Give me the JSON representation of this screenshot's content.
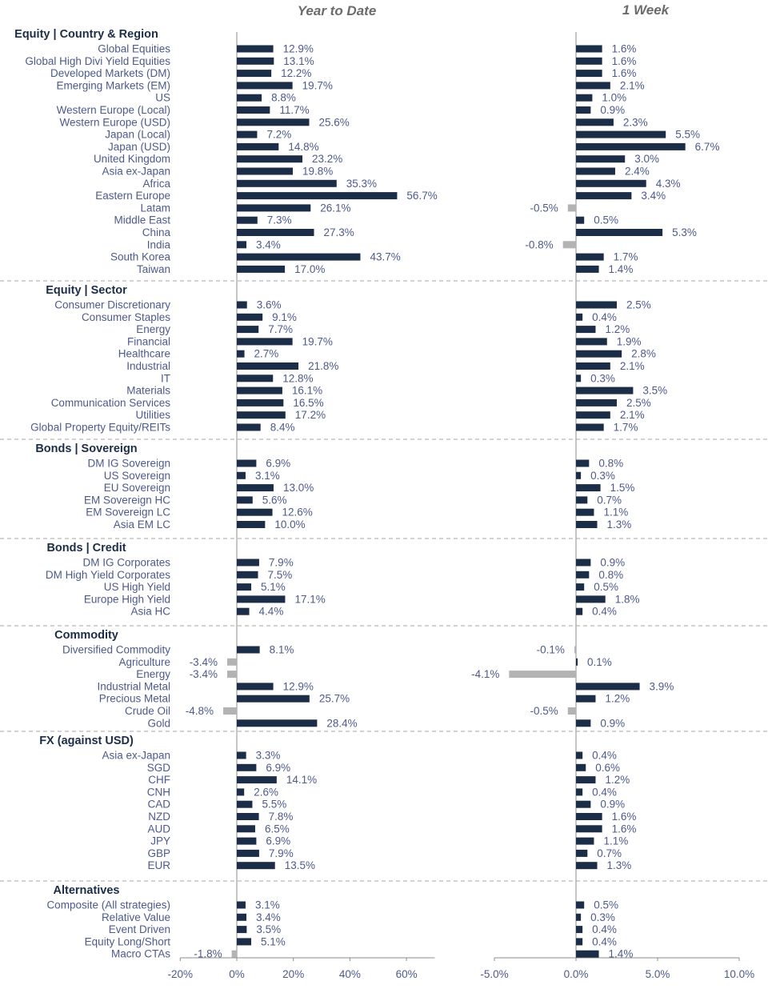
{
  "chart_data": {
    "type": "bar",
    "orientation": "horizontal",
    "colors": {
      "positive": "#1c2d47",
      "negative": "#b3b3b3",
      "text": "#4d5a8a",
      "header": "#1c2d47"
    },
    "panels": [
      {
        "title": "Year to Date",
        "xlim": [
          -20,
          70
        ],
        "ticks": [
          -20,
          0,
          20,
          40,
          60
        ],
        "tick_labels": [
          "-20%",
          "0%",
          "20%",
          "40%",
          "60%"
        ]
      },
      {
        "title": "1 Week",
        "xlim": [
          -5,
          10
        ],
        "ticks": [
          -5,
          0,
          5,
          10
        ],
        "tick_labels": [
          "-5.0%",
          "0.0%",
          "5.0%",
          "10.0%"
        ]
      }
    ],
    "groups": [
      {
        "name": "Equity | Country & Region",
        "items": [
          {
            "label": "Global Equities",
            "ytd": 12.9,
            "wk": 1.6
          },
          {
            "label": "Global High Divi Yield Equities",
            "ytd": 13.1,
            "wk": 1.6
          },
          {
            "label": "Developed Markets (DM)",
            "ytd": 12.2,
            "wk": 1.6
          },
          {
            "label": "Emerging Markets (EM)",
            "ytd": 19.7,
            "wk": 2.1
          },
          {
            "label": "US",
            "ytd": 8.8,
            "wk": 1.0
          },
          {
            "label": "Western Europe (Local)",
            "ytd": 11.7,
            "wk": 0.9
          },
          {
            "label": "Western Europe (USD)",
            "ytd": 25.6,
            "wk": 2.3
          },
          {
            "label": "Japan (Local)",
            "ytd": 7.2,
            "wk": 5.5
          },
          {
            "label": "Japan (USD)",
            "ytd": 14.8,
            "wk": 6.7
          },
          {
            "label": "United Kingdom",
            "ytd": 23.2,
            "wk": 3.0
          },
          {
            "label": "Asia ex-Japan",
            "ytd": 19.8,
            "wk": 2.4
          },
          {
            "label": "Africa",
            "ytd": 35.3,
            "wk": 4.3
          },
          {
            "label": "Eastern Europe",
            "ytd": 56.7,
            "wk": 3.4
          },
          {
            "label": "Latam",
            "ytd": 26.1,
            "wk": -0.5
          },
          {
            "label": "Middle East",
            "ytd": 7.3,
            "wk": 0.5
          },
          {
            "label": "China",
            "ytd": 27.3,
            "wk": 5.3
          },
          {
            "label": "India",
            "ytd": 3.4,
            "wk": -0.8
          },
          {
            "label": "South Korea",
            "ytd": 43.7,
            "wk": 1.7
          },
          {
            "label": "Taiwan",
            "ytd": 17.0,
            "wk": 1.4
          }
        ]
      },
      {
        "name": "Equity | Sector",
        "items": [
          {
            "label": "Consumer Discretionary",
            "ytd": 3.6,
            "wk": 2.5
          },
          {
            "label": "Consumer Staples",
            "ytd": 9.1,
            "wk": 0.4
          },
          {
            "label": "Energy",
            "ytd": 7.7,
            "wk": 1.2
          },
          {
            "label": "Financial",
            "ytd": 19.7,
            "wk": 1.9
          },
          {
            "label": "Healthcare",
            "ytd": 2.7,
            "wk": 2.8
          },
          {
            "label": "Industrial",
            "ytd": 21.8,
            "wk": 2.1
          },
          {
            "label": "IT",
            "ytd": 12.8,
            "wk": 0.3
          },
          {
            "label": "Materials",
            "ytd": 16.1,
            "wk": 3.5
          },
          {
            "label": "Communication Services",
            "ytd": 16.5,
            "wk": 2.5
          },
          {
            "label": "Utilities",
            "ytd": 17.2,
            "wk": 2.1
          },
          {
            "label": "Global Property Equity/REITs",
            "ytd": 8.4,
            "wk": 1.7
          }
        ]
      },
      {
        "name": "Bonds | Sovereign",
        "items": [
          {
            "label": "DM IG Sovereign",
            "ytd": 6.9,
            "wk": 0.8
          },
          {
            "label": "US Sovereign",
            "ytd": 3.1,
            "wk": 0.3
          },
          {
            "label": "EU Sovereign",
            "ytd": 13.0,
            "wk": 1.5
          },
          {
            "label": "EM Sovereign HC",
            "ytd": 5.6,
            "wk": 0.7
          },
          {
            "label": "EM Sovereign LC",
            "ytd": 12.6,
            "wk": 1.1
          },
          {
            "label": "Asia EM LC",
            "ytd": 10.0,
            "wk": 1.3
          }
        ]
      },
      {
        "name": "Bonds | Credit",
        "items": [
          {
            "label": "DM IG Corporates",
            "ytd": 7.9,
            "wk": 0.9
          },
          {
            "label": "DM High Yield Corporates",
            "ytd": 7.5,
            "wk": 0.8
          },
          {
            "label": "US High Yield",
            "ytd": 5.1,
            "wk": 0.5
          },
          {
            "label": "Europe High Yield",
            "ytd": 17.1,
            "wk": 1.8
          },
          {
            "label": "Asia HC",
            "ytd": 4.4,
            "wk": 0.4
          }
        ]
      },
      {
        "name": "Commodity",
        "items": [
          {
            "label": "Diversified Commodity",
            "ytd": 8.1,
            "wk": -0.1
          },
          {
            "label": "Agriculture",
            "ytd": -3.4,
            "wk": 0.1
          },
          {
            "label": "Energy",
            "ytd": -3.4,
            "wk": -4.1
          },
          {
            "label": "Industrial Metal",
            "ytd": 12.9,
            "wk": 3.9
          },
          {
            "label": "Precious Metal",
            "ytd": 25.7,
            "wk": 1.2
          },
          {
            "label": "Crude Oil",
            "ytd": -4.8,
            "wk": -0.5
          },
          {
            "label": "Gold",
            "ytd": 28.4,
            "wk": 0.9
          }
        ]
      },
      {
        "name": "FX (against USD)",
        "items": [
          {
            "label": "Asia ex-Japan",
            "ytd": 3.3,
            "wk": 0.4
          },
          {
            "label": "SGD",
            "ytd": 6.9,
            "wk": 0.6
          },
          {
            "label": "CHF",
            "ytd": 14.1,
            "wk": 1.2
          },
          {
            "label": "CNH",
            "ytd": 2.6,
            "wk": 0.4
          },
          {
            "label": "CAD",
            "ytd": 5.5,
            "wk": 0.9
          },
          {
            "label": "NZD",
            "ytd": 7.8,
            "wk": 1.6
          },
          {
            "label": "AUD",
            "ytd": 6.5,
            "wk": 1.6
          },
          {
            "label": "JPY",
            "ytd": 6.9,
            "wk": 1.1
          },
          {
            "label": "GBP",
            "ytd": 7.9,
            "wk": 0.7
          },
          {
            "label": "EUR",
            "ytd": 13.5,
            "wk": 1.3
          }
        ]
      },
      {
        "name": "Alternatives",
        "items": [
          {
            "label": "Composite (All strategies)",
            "ytd": 3.1,
            "wk": 0.5
          },
          {
            "label": "Relative Value",
            "ytd": 3.4,
            "wk": 0.3
          },
          {
            "label": "Event Driven",
            "ytd": 3.5,
            "wk": 0.4
          },
          {
            "label": "Equity Long/Short",
            "ytd": 5.1,
            "wk": 0.4
          },
          {
            "label": "Macro CTAs",
            "ytd": -1.8,
            "wk": 1.4
          }
        ]
      }
    ]
  }
}
